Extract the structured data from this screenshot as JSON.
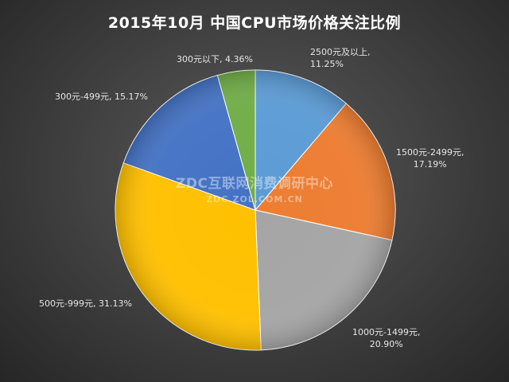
{
  "title": "2015年10月  中国CPU市场价格关注比例",
  "watermark": {
    "line1": "ZDC互联网消费调研中心",
    "line2": "ZDC.ZOL.COM.CN"
  },
  "chart_data": {
    "type": "pie",
    "title": "2015年10月  中国CPU市场价格关注比例",
    "legend": "none",
    "slices": [
      {
        "label": "2500元及以上",
        "value_text": "11.25%",
        "value": 11.25,
        "color": "#5b9bd5"
      },
      {
        "label": "1500元-2499元",
        "value_text": "17.19%",
        "value": 17.19,
        "color": "#ed7d31"
      },
      {
        "label": "1000元-1499元",
        "value_text": "20.90%",
        "value": 20.9,
        "color": "#a5a5a5"
      },
      {
        "label": "500元-999元",
        "value_text": "31.13%",
        "value": 31.13,
        "color": "#ffc000"
      },
      {
        "label": "300元-499元",
        "value_text": "15.17%",
        "value": 15.17,
        "color": "#4472c4"
      },
      {
        "label": "300元以下",
        "value_text": "4.36%",
        "value": 4.36,
        "color": "#70ad47"
      }
    ]
  }
}
